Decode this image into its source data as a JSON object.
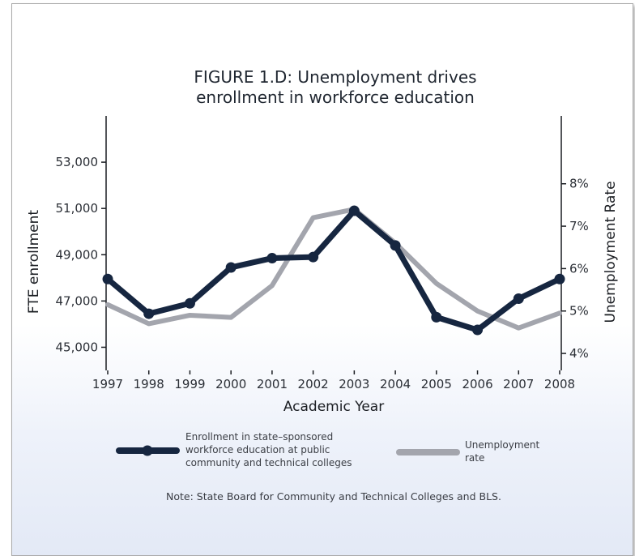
{
  "chart_data": {
    "type": "line",
    "title": [
      "FIGURE 1.D: Unemployment drives",
      "enrollment in workforce education"
    ],
    "x": [
      "1997",
      "1998",
      "1999",
      "2000",
      "2001",
      "2002",
      "2003",
      "2004",
      "2005",
      "2006",
      "2007",
      "2008"
    ],
    "xlabel": "Academic Year",
    "ylabel_left": "FTE enrollment",
    "ylabel_right": "Unemployment Rate",
    "y_left": {
      "ticks": [
        45000,
        47000,
        49000,
        51000,
        53000
      ],
      "tick_labels": [
        "45,000",
        "47,000",
        "49,000",
        "51,000",
        "53,000"
      ],
      "lim": [
        44000,
        55000
      ]
    },
    "y_right": {
      "ticks": [
        4,
        5,
        6,
        7,
        8
      ],
      "tick_labels": [
        "4%",
        "5%",
        "6%",
        "7%",
        "8%"
      ],
      "lim": [
        3.6,
        9.6
      ]
    },
    "series": [
      {
        "name": "Enrollment in state-sponsored workforce education at public community and technical colleges",
        "axis": "left",
        "color": "#162640",
        "markers": true,
        "values": [
          47950,
          46450,
          46900,
          48450,
          48850,
          48900,
          50900,
          49400,
          46300,
          45750,
          47100,
          47950
        ]
      },
      {
        "name": "Unemployment rate",
        "axis": "right",
        "color": "#a3a5ad",
        "markers": false,
        "values": [
          5.15,
          4.7,
          4.9,
          4.85,
          5.6,
          7.2,
          7.4,
          6.6,
          5.65,
          5.0,
          4.6,
          4.95
        ]
      }
    ],
    "grid": false,
    "legend_position": "bottom"
  },
  "legend": {
    "series1_lines": [
      "Enrollment in state–sponsored",
      "workforce education at public",
      "community and technical colleges"
    ],
    "series2_lines": [
      "Unemployment",
      "rate"
    ]
  },
  "note": "Note: State Board for Community and Technical Colleges and BLS."
}
